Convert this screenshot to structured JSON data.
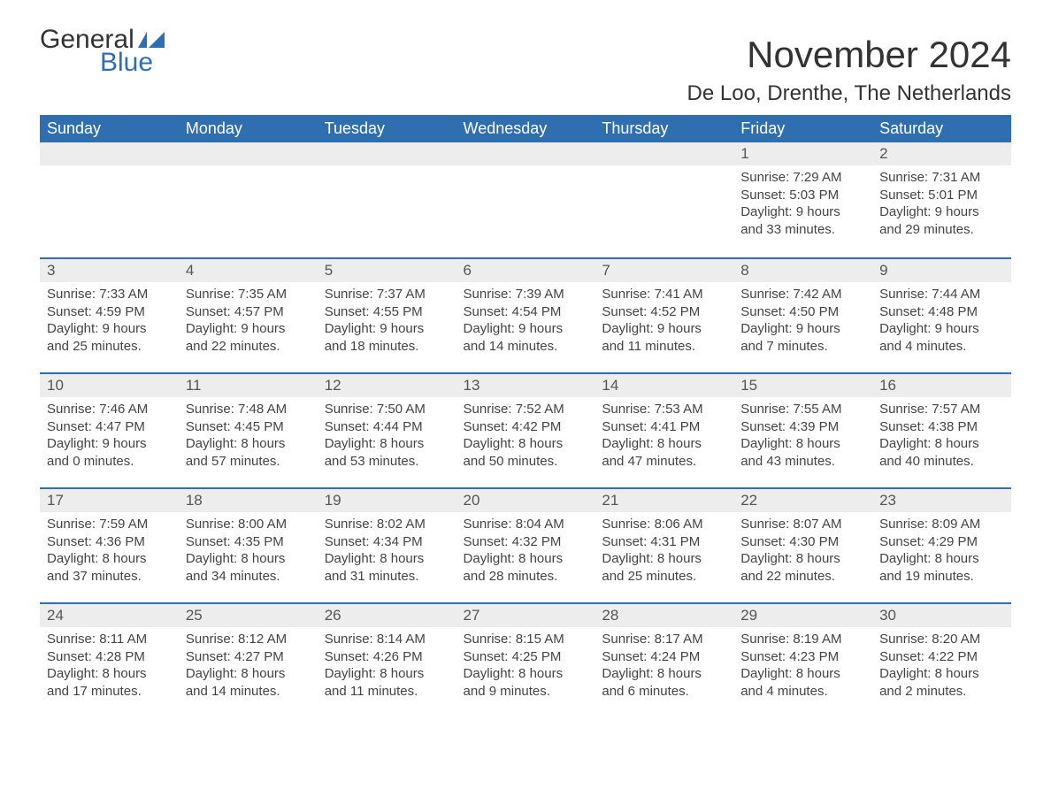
{
  "logo": {
    "line1": "General",
    "line2": "Blue",
    "text_color": "#333333",
    "accent_color": "#2f6fb0"
  },
  "title": "November 2024",
  "location": "De Loo, Drenthe, The Netherlands",
  "colors": {
    "header_bg": "#2f6fb0",
    "header_text": "#ffffff",
    "daynum_bg": "#ededed",
    "daynum_border": "#2f6fb0",
    "body_text": "#444444",
    "page_bg": "#ffffff"
  },
  "typography": {
    "title_fontsize": 42,
    "location_fontsize": 24,
    "header_fontsize": 18,
    "daynum_fontsize": 17,
    "body_fontsize": 15
  },
  "day_headers": [
    "Sunday",
    "Monday",
    "Tuesday",
    "Wednesday",
    "Thursday",
    "Friday",
    "Saturday"
  ],
  "weeks": [
    [
      {
        "empty": true
      },
      {
        "empty": true
      },
      {
        "empty": true
      },
      {
        "empty": true
      },
      {
        "empty": true
      },
      {
        "day": "1",
        "sunrise": "Sunrise: 7:29 AM",
        "sunset": "Sunset: 5:03 PM",
        "daylight1": "Daylight: 9 hours",
        "daylight2": "and 33 minutes."
      },
      {
        "day": "2",
        "sunrise": "Sunrise: 7:31 AM",
        "sunset": "Sunset: 5:01 PM",
        "daylight1": "Daylight: 9 hours",
        "daylight2": "and 29 minutes."
      }
    ],
    [
      {
        "day": "3",
        "sunrise": "Sunrise: 7:33 AM",
        "sunset": "Sunset: 4:59 PM",
        "daylight1": "Daylight: 9 hours",
        "daylight2": "and 25 minutes."
      },
      {
        "day": "4",
        "sunrise": "Sunrise: 7:35 AM",
        "sunset": "Sunset: 4:57 PM",
        "daylight1": "Daylight: 9 hours",
        "daylight2": "and 22 minutes."
      },
      {
        "day": "5",
        "sunrise": "Sunrise: 7:37 AM",
        "sunset": "Sunset: 4:55 PM",
        "daylight1": "Daylight: 9 hours",
        "daylight2": "and 18 minutes."
      },
      {
        "day": "6",
        "sunrise": "Sunrise: 7:39 AM",
        "sunset": "Sunset: 4:54 PM",
        "daylight1": "Daylight: 9 hours",
        "daylight2": "and 14 minutes."
      },
      {
        "day": "7",
        "sunrise": "Sunrise: 7:41 AM",
        "sunset": "Sunset: 4:52 PM",
        "daylight1": "Daylight: 9 hours",
        "daylight2": "and 11 minutes."
      },
      {
        "day": "8",
        "sunrise": "Sunrise: 7:42 AM",
        "sunset": "Sunset: 4:50 PM",
        "daylight1": "Daylight: 9 hours",
        "daylight2": "and 7 minutes."
      },
      {
        "day": "9",
        "sunrise": "Sunrise: 7:44 AM",
        "sunset": "Sunset: 4:48 PM",
        "daylight1": "Daylight: 9 hours",
        "daylight2": "and 4 minutes."
      }
    ],
    [
      {
        "day": "10",
        "sunrise": "Sunrise: 7:46 AM",
        "sunset": "Sunset: 4:47 PM",
        "daylight1": "Daylight: 9 hours",
        "daylight2": "and 0 minutes."
      },
      {
        "day": "11",
        "sunrise": "Sunrise: 7:48 AM",
        "sunset": "Sunset: 4:45 PM",
        "daylight1": "Daylight: 8 hours",
        "daylight2": "and 57 minutes."
      },
      {
        "day": "12",
        "sunrise": "Sunrise: 7:50 AM",
        "sunset": "Sunset: 4:44 PM",
        "daylight1": "Daylight: 8 hours",
        "daylight2": "and 53 minutes."
      },
      {
        "day": "13",
        "sunrise": "Sunrise: 7:52 AM",
        "sunset": "Sunset: 4:42 PM",
        "daylight1": "Daylight: 8 hours",
        "daylight2": "and 50 minutes."
      },
      {
        "day": "14",
        "sunrise": "Sunrise: 7:53 AM",
        "sunset": "Sunset: 4:41 PM",
        "daylight1": "Daylight: 8 hours",
        "daylight2": "and 47 minutes."
      },
      {
        "day": "15",
        "sunrise": "Sunrise: 7:55 AM",
        "sunset": "Sunset: 4:39 PM",
        "daylight1": "Daylight: 8 hours",
        "daylight2": "and 43 minutes."
      },
      {
        "day": "16",
        "sunrise": "Sunrise: 7:57 AM",
        "sunset": "Sunset: 4:38 PM",
        "daylight1": "Daylight: 8 hours",
        "daylight2": "and 40 minutes."
      }
    ],
    [
      {
        "day": "17",
        "sunrise": "Sunrise: 7:59 AM",
        "sunset": "Sunset: 4:36 PM",
        "daylight1": "Daylight: 8 hours",
        "daylight2": "and 37 minutes."
      },
      {
        "day": "18",
        "sunrise": "Sunrise: 8:00 AM",
        "sunset": "Sunset: 4:35 PM",
        "daylight1": "Daylight: 8 hours",
        "daylight2": "and 34 minutes."
      },
      {
        "day": "19",
        "sunrise": "Sunrise: 8:02 AM",
        "sunset": "Sunset: 4:34 PM",
        "daylight1": "Daylight: 8 hours",
        "daylight2": "and 31 minutes."
      },
      {
        "day": "20",
        "sunrise": "Sunrise: 8:04 AM",
        "sunset": "Sunset: 4:32 PM",
        "daylight1": "Daylight: 8 hours",
        "daylight2": "and 28 minutes."
      },
      {
        "day": "21",
        "sunrise": "Sunrise: 8:06 AM",
        "sunset": "Sunset: 4:31 PM",
        "daylight1": "Daylight: 8 hours",
        "daylight2": "and 25 minutes."
      },
      {
        "day": "22",
        "sunrise": "Sunrise: 8:07 AM",
        "sunset": "Sunset: 4:30 PM",
        "daylight1": "Daylight: 8 hours",
        "daylight2": "and 22 minutes."
      },
      {
        "day": "23",
        "sunrise": "Sunrise: 8:09 AM",
        "sunset": "Sunset: 4:29 PM",
        "daylight1": "Daylight: 8 hours",
        "daylight2": "and 19 minutes."
      }
    ],
    [
      {
        "day": "24",
        "sunrise": "Sunrise: 8:11 AM",
        "sunset": "Sunset: 4:28 PM",
        "daylight1": "Daylight: 8 hours",
        "daylight2": "and 17 minutes."
      },
      {
        "day": "25",
        "sunrise": "Sunrise: 8:12 AM",
        "sunset": "Sunset: 4:27 PM",
        "daylight1": "Daylight: 8 hours",
        "daylight2": "and 14 minutes."
      },
      {
        "day": "26",
        "sunrise": "Sunrise: 8:14 AM",
        "sunset": "Sunset: 4:26 PM",
        "daylight1": "Daylight: 8 hours",
        "daylight2": "and 11 minutes."
      },
      {
        "day": "27",
        "sunrise": "Sunrise: 8:15 AM",
        "sunset": "Sunset: 4:25 PM",
        "daylight1": "Daylight: 8 hours",
        "daylight2": "and 9 minutes."
      },
      {
        "day": "28",
        "sunrise": "Sunrise: 8:17 AM",
        "sunset": "Sunset: 4:24 PM",
        "daylight1": "Daylight: 8 hours",
        "daylight2": "and 6 minutes."
      },
      {
        "day": "29",
        "sunrise": "Sunrise: 8:19 AM",
        "sunset": "Sunset: 4:23 PM",
        "daylight1": "Daylight: 8 hours",
        "daylight2": "and 4 minutes."
      },
      {
        "day": "30",
        "sunrise": "Sunrise: 8:20 AM",
        "sunset": "Sunset: 4:22 PM",
        "daylight1": "Daylight: 8 hours",
        "daylight2": "and 2 minutes."
      }
    ]
  ]
}
